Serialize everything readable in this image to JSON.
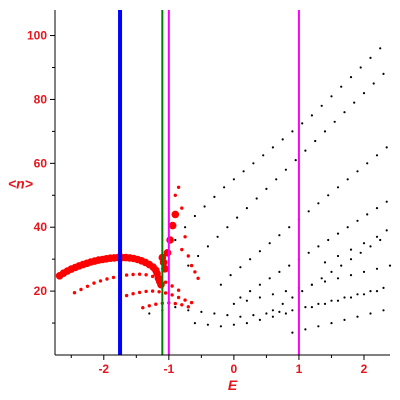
{
  "chart_data": {
    "type": "scatter",
    "title": "",
    "xlabel": "E",
    "ylabel": "<n>",
    "xlim": [
      -2.75,
      2.4
    ],
    "ylim": [
      0,
      108
    ],
    "grid": false,
    "x_ticks": [
      -2,
      -1,
      0,
      1,
      2
    ],
    "y_ticks": [
      20,
      40,
      60,
      80,
      100
    ],
    "x_tick_labels": [
      "-2",
      "-1",
      "0",
      "1",
      "2"
    ],
    "y_tick_labels": [
      "20",
      "40",
      "60",
      "80",
      "100"
    ],
    "vertical_lines": [
      {
        "x": -1.75,
        "color": "#0000ff",
        "style": "thick"
      },
      {
        "x": -1.1,
        "color": "#008000",
        "style": "medium"
      },
      {
        "x": -1.0,
        "color": "#ff00ff",
        "style": "medium"
      },
      {
        "x": 1.0,
        "color": "#ff00ff",
        "style": "medium"
      }
    ],
    "series": [
      {
        "color": "#ff0000",
        "marker": "large-dot",
        "x": [
          -2.68,
          -2.62,
          -2.56,
          -2.5,
          -2.44,
          -2.38,
          -2.32,
          -2.26,
          -2.2,
          -2.14,
          -2.08,
          -2.02,
          -1.96,
          -1.9,
          -1.84,
          -1.78,
          -1.72,
          -1.66,
          -1.6,
          -1.54,
          -1.48,
          -1.42,
          -1.36,
          -1.3,
          -1.24,
          -1.2,
          -1.18,
          -1.16,
          -1.14,
          -1.12,
          -1.1,
          -1.08,
          -1.06,
          -1.02,
          -0.98,
          -0.94,
          -0.9
        ],
        "y": [
          24.8,
          25.6,
          26.3,
          26.9,
          27.4,
          27.9,
          28.3,
          28.7,
          29.1,
          29.4,
          29.7,
          29.9,
          30.1,
          30.3,
          30.4,
          30.5,
          30.5,
          30.5,
          30.4,
          30.2,
          29.9,
          29.5,
          29.0,
          28.3,
          27.5,
          26.5,
          25.5,
          24.0,
          23.0,
          22.0,
          30.5,
          29.0,
          27.0,
          32.0,
          36.0,
          40.5,
          44.0
        ]
      },
      {
        "color": "#ff0000",
        "marker": "small-dot",
        "x": [
          -2.45,
          -2.35,
          -2.25,
          -2.15,
          -2.05,
          -1.95,
          -1.85,
          -1.75,
          -1.65,
          -1.55,
          -1.45,
          -1.35,
          -1.25,
          -1.15,
          -1.05,
          -0.95,
          -0.85,
          -1.75,
          -1.65,
          -1.55,
          -1.45,
          -1.35,
          -1.25,
          -1.15,
          -1.05,
          -0.95,
          -0.85,
          -0.75,
          -0.65,
          -1.4,
          -1.3,
          -1.2,
          -1.1,
          -1.0,
          -0.9,
          -0.8,
          -0.7,
          -0.8,
          -0.75,
          -0.7,
          -0.65,
          -0.6,
          -0.55,
          -0.9,
          -0.85,
          -0.8
        ],
        "y": [
          19.5,
          20.5,
          21.5,
          22.5,
          23.2,
          23.8,
          24.3,
          24.7,
          25.0,
          25.2,
          25.3,
          25.1,
          24.6,
          23.8,
          22.8,
          21.6,
          20.3,
          18.0,
          18.6,
          19.2,
          19.6,
          19.9,
          20.0,
          19.8,
          19.4,
          18.8,
          18.0,
          17.2,
          16.4,
          14.8,
          15.4,
          15.9,
          16.2,
          16.3,
          16.1,
          15.7,
          15.1,
          33.0,
          37.0,
          31.0,
          28.0,
          26.0,
          24.0,
          50.0,
          52.5,
          46.0
        ]
      },
      {
        "color": "#000000",
        "marker": "dot",
        "x": [
          -0.9,
          -0.75,
          -0.6,
          -0.45,
          -0.3,
          -0.15,
          0.0,
          0.15,
          0.3,
          0.45,
          0.6,
          0.75,
          0.9,
          1.05,
          1.2,
          1.35,
          1.5,
          1.65,
          1.8,
          1.95,
          2.1,
          2.25,
          -0.7,
          -0.55,
          -0.4,
          -0.25,
          -0.1,
          0.05,
          0.2,
          0.35,
          0.5,
          0.65,
          0.8,
          0.95,
          1.1,
          1.25,
          1.4,
          1.55,
          1.7,
          1.85,
          2.0,
          2.15,
          2.3,
          -0.2,
          -0.05,
          0.1,
          0.25,
          0.4,
          0.55,
          0.7,
          0.85,
          1.0,
          1.15,
          1.3,
          1.45,
          1.6,
          1.75,
          1.9,
          2.05,
          2.2,
          2.35,
          0.1,
          0.25,
          0.4,
          0.55,
          0.7,
          0.85,
          1.0,
          1.15,
          1.3,
          1.45,
          1.6,
          1.75,
          1.9,
          2.05,
          2.2,
          2.35,
          0.6,
          0.75,
          0.9,
          1.05,
          1.2,
          1.35,
          1.5,
          1.65,
          1.8,
          1.95,
          2.1,
          2.25,
          -1.3,
          -1.1,
          -0.9,
          -0.7,
          -0.5,
          -0.3,
          -0.1,
          0.1,
          0.3,
          0.5,
          0.7,
          0.9,
          1.1,
          1.3,
          1.5,
          1.7,
          1.9,
          2.1,
          2.3,
          -0.6,
          -0.4,
          -0.2,
          0.0,
          0.2,
          0.4,
          0.6,
          0.8,
          1.0,
          1.2,
          1.4,
          1.6,
          1.8,
          2.0,
          2.2,
          0.0,
          0.2,
          0.4,
          0.6,
          0.8,
          1.0,
          1.2,
          1.4,
          1.6,
          1.8,
          2.0,
          2.2,
          2.4,
          0.9,
          1.1,
          1.3,
          1.5,
          1.7,
          1.9,
          2.1,
          2.3,
          1.4,
          1.6,
          1.8,
          2.0,
          2.2,
          2.35
        ],
        "y": [
          36.0,
          40.0,
          43.5,
          46.5,
          49.5,
          52.5,
          55.0,
          57.5,
          60.0,
          62.5,
          65.0,
          67.5,
          70.0,
          72.5,
          75.0,
          78.0,
          81.0,
          84.0,
          87.0,
          90.0,
          93.0,
          96.0,
          28.0,
          31.0,
          34.0,
          37.0,
          40.0,
          43.0,
          46.0,
          49.0,
          52.0,
          55.0,
          58.0,
          61.0,
          64.0,
          67.0,
          70.0,
          73.0,
          76.0,
          79.0,
          82.0,
          85.0,
          88.0,
          22.0,
          25.0,
          27.5,
          30.0,
          32.5,
          35.0,
          37.5,
          40.0,
          42.5,
          45.0,
          47.5,
          50.0,
          52.5,
          55.0,
          57.5,
          60.0,
          62.5,
          65.0,
          18.0,
          20.0,
          22.0,
          24.0,
          26.0,
          28.0,
          30.0,
          32.0,
          34.0,
          36.0,
          38.0,
          40.0,
          42.0,
          44.0,
          46.0,
          48.0,
          14.0,
          16.0,
          18.0,
          20.0,
          22.0,
          24.0,
          26.0,
          28.0,
          30.0,
          32.0,
          34.0,
          36.0,
          13.0,
          14.0,
          15.0,
          14.0,
          13.5,
          13.0,
          12.5,
          12.0,
          12.5,
          13.0,
          13.5,
          14.0,
          15.0,
          16.0,
          17.0,
          18.0,
          19.0,
          20.0,
          21.0,
          10.0,
          9.5,
          9.0,
          9.5,
          10.0,
          11.0,
          12.0,
          13.0,
          14.0,
          15.0,
          16.0,
          17.0,
          18.0,
          19.0,
          20.0,
          16.0,
          17.0,
          18.0,
          19.0,
          20.0,
          21.0,
          22.0,
          23.0,
          24.0,
          25.0,
          26.0,
          27.0,
          28.0,
          7.0,
          8.0,
          9.0,
          10.0,
          11.0,
          12.0,
          13.0,
          14.0,
          29.0,
          31.0,
          33.0,
          35.0,
          37.0,
          39.0
        ]
      }
    ]
  }
}
